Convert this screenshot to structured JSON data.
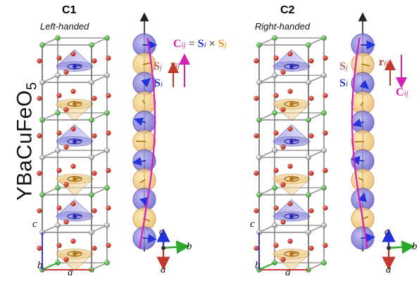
{
  "compound": "YBaCuFeO5",
  "panels": [
    {
      "title": "C1",
      "subtitle": "Left-handed"
    },
    {
      "title": "C2",
      "subtitle": "Right-handed"
    }
  ],
  "formula": {
    "c": "C",
    "c_sub": "ij",
    "eq": " = ",
    "si": "S",
    "si_sub": "i",
    "times": " × ",
    "sj": "S",
    "sj_sub": "j"
  },
  "vectors": {
    "r": "r",
    "r_sub": "ij",
    "s": "S",
    "si_sub": "i",
    "sj_sub": "j",
    "c": "C",
    "c_sub": "ij"
  },
  "axes": {
    "a": "a",
    "b": "b",
    "c": "c"
  },
  "colors": {
    "blue": "#3a3ad8",
    "orange": "#e8960a",
    "magenta": "#d61fb5",
    "red_arrow": "#c0392b",
    "sj_color": "#b2645a",
    "green": "#29a829"
  }
}
